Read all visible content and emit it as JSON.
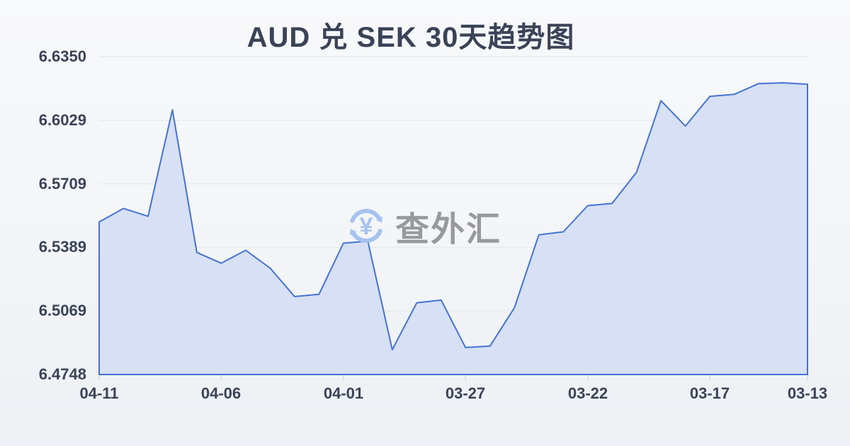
{
  "title": "AUD 兑 SEK 30天趋势图",
  "watermark": {
    "text": "查外汇",
    "icon": "currency-yuan-refresh-icon",
    "icon_color": "#a6c2ef",
    "text_color": "#97999e"
  },
  "chart_data": {
    "type": "area",
    "title": "AUD 兑 SEK 30天趋势图",
    "x": [
      "04-11",
      "04-10",
      "04-09",
      "04-08",
      "04-07",
      "04-06",
      "04-05",
      "04-04",
      "04-03",
      "04-02",
      "04-01",
      "03-31",
      "03-30",
      "03-29",
      "03-28",
      "03-27",
      "03-26",
      "03-25",
      "03-24",
      "03-23",
      "03-22",
      "03-21",
      "03-20",
      "03-19",
      "03-18",
      "03-17",
      "03-16",
      "03-15",
      "03-14",
      "03-13"
    ],
    "values": [
      6.5517,
      6.5585,
      6.5545,
      6.6082,
      6.5363,
      6.5309,
      6.5374,
      6.5284,
      6.5141,
      6.5152,
      6.541,
      6.542,
      6.4873,
      6.5109,
      6.5123,
      6.4884,
      6.4891,
      6.5084,
      6.5452,
      6.5467,
      6.5599,
      6.561,
      6.5767,
      6.6128,
      6.6,
      6.615,
      6.616,
      6.6214,
      6.6218,
      6.6211
    ],
    "x_tick_indices": [
      0,
      5,
      10,
      15,
      20,
      25,
      29
    ],
    "x_tick_labels": [
      "04-11",
      "04-06",
      "04-01",
      "03-27",
      "03-22",
      "03-17",
      "03-13"
    ],
    "y_ticks": [
      6.635,
      6.6029,
      6.5709,
      6.5389,
      6.5069,
      6.4748
    ],
    "y_tick_labels": [
      "6.6350",
      "6.6029",
      "6.5709",
      "6.5389",
      "6.5069",
      "6.4748"
    ],
    "ylim": [
      6.4748,
      6.635
    ],
    "xlabel": "",
    "ylabel": "",
    "grid": true,
    "legend": false,
    "line_color": "#4573d2",
    "fill_color": "#d7e0f4",
    "grid_color": "#e3e5ea",
    "tick_color": "#c9ced6",
    "axis_label_color": "#3a4357"
  }
}
